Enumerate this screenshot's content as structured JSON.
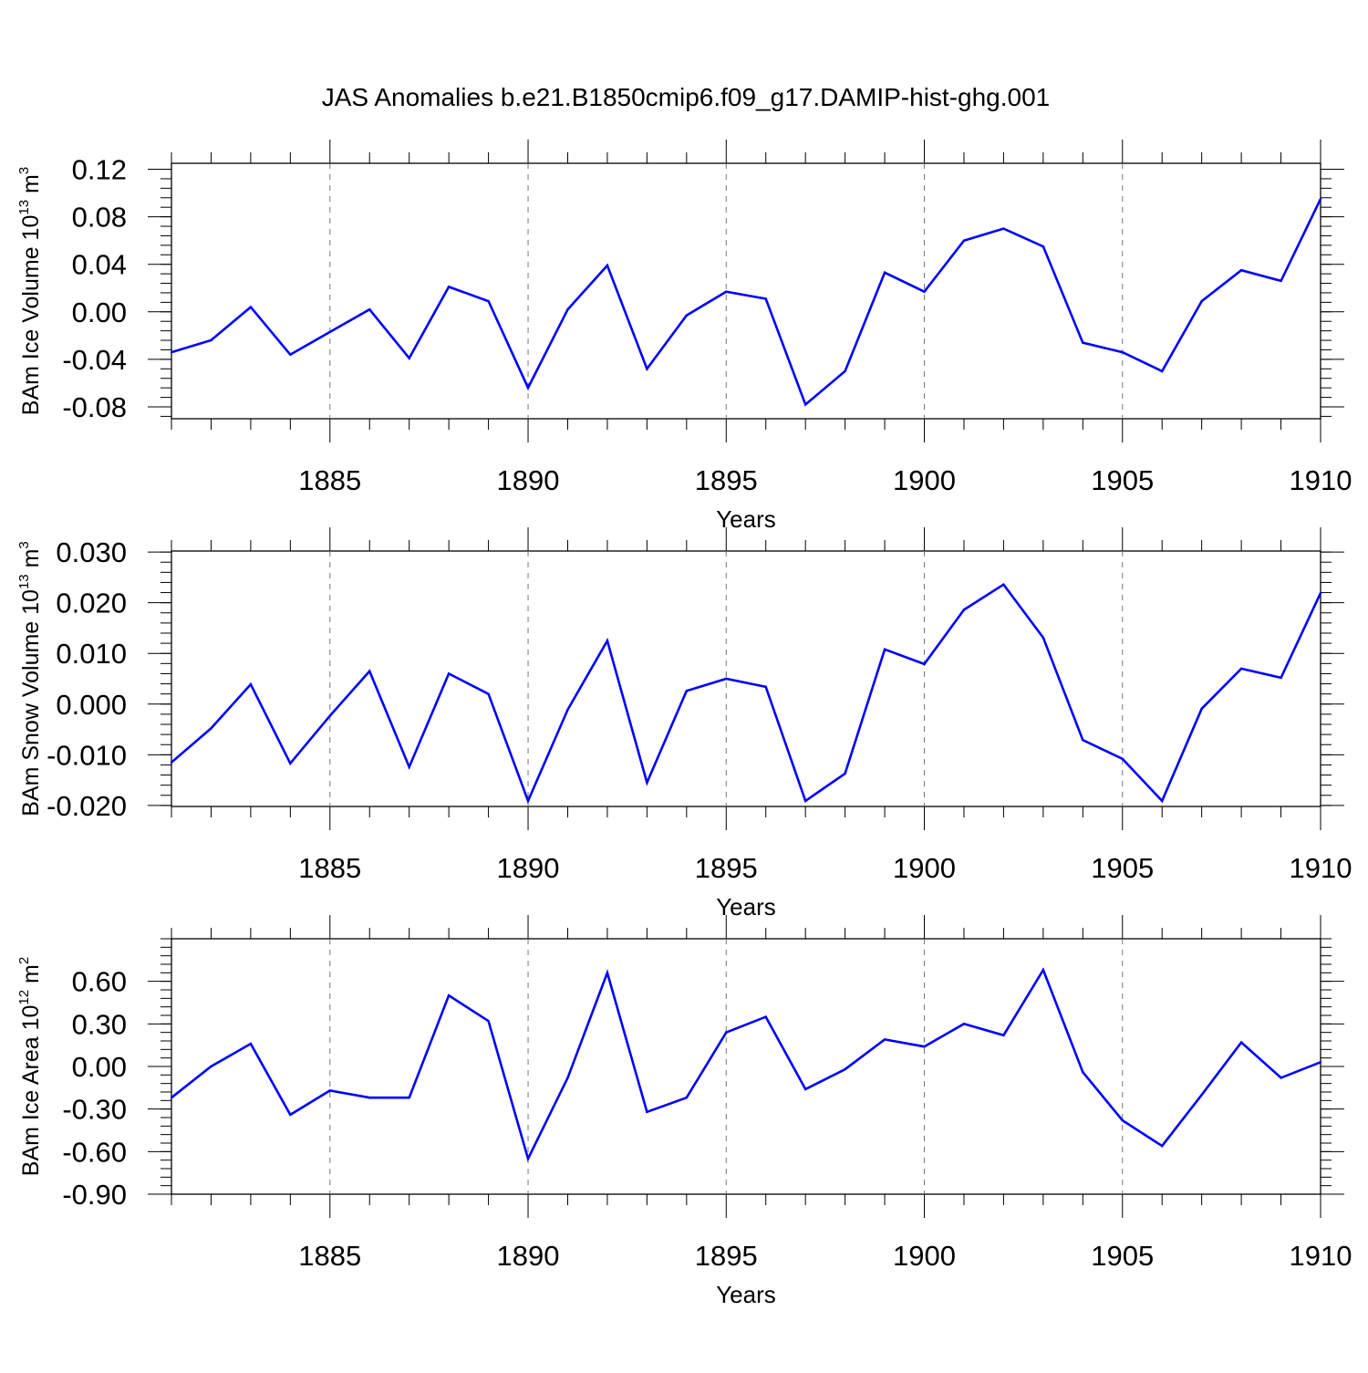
{
  "title": "JAS Anomalies b.e21.B1850cmip6.f09_g17.DAMIP-hist-ghg.001",
  "colors": {
    "line": "#0000ff",
    "axis": "#000000",
    "grid": "#777777"
  },
  "chart_data": [
    {
      "type": "line",
      "ylabel": "BAm Ice Volume",
      "ylabel_scale_base": "10",
      "ylabel_exponent": "13",
      "ylabel_unit": "m",
      "ylabel_unit_power": "3",
      "xlabel": "Years",
      "xlim": [
        1881,
        1910
      ],
      "ylim": [
        -0.09,
        0.125
      ],
      "yticks": [
        0.12,
        0.08,
        0.04,
        0.0,
        -0.04,
        -0.08
      ],
      "ytick_labels": [
        "0.12",
        "0.08",
        "0.04",
        "0.00",
        "-0.04",
        "-0.08"
      ],
      "xticks": [
        1885,
        1890,
        1895,
        1900,
        1905,
        1910
      ],
      "xtick_labels": [
        "1885",
        "1890",
        "1895",
        "1900",
        "1905",
        "1910"
      ],
      "x": [
        1881,
        1882,
        1883,
        1884,
        1885,
        1886,
        1887,
        1888,
        1889,
        1890,
        1891,
        1892,
        1893,
        1894,
        1895,
        1896,
        1897,
        1898,
        1899,
        1900,
        1901,
        1902,
        1903,
        1904,
        1905,
        1906,
        1907,
        1908,
        1909,
        1910
      ],
      "values": [
        -0.034,
        -0.024,
        0.004,
        -0.036,
        -0.017,
        0.002,
        -0.039,
        0.021,
        0.009,
        -0.064,
        0.002,
        0.039,
        -0.048,
        -0.003,
        0.017,
        0.011,
        -0.078,
        -0.05,
        0.033,
        0.017,
        0.06,
        0.07,
        0.055,
        -0.026,
        -0.034,
        -0.05,
        0.009,
        0.035,
        0.026,
        0.095
      ]
    },
    {
      "type": "line",
      "ylabel": "BAm Snow Volume",
      "ylabel_scale_base": "10",
      "ylabel_exponent": "13",
      "ylabel_unit": "m",
      "ylabel_unit_power": "3",
      "xlabel": "Years",
      "xlim": [
        1881,
        1910
      ],
      "ylim": [
        -0.0202,
        0.0302
      ],
      "yticks": [
        0.03,
        0.02,
        0.01,
        0.0,
        -0.01,
        -0.02
      ],
      "ytick_labels": [
        "0.030",
        "0.020",
        "0.010",
        "0.000",
        "-0.010",
        "-0.020"
      ],
      "xticks": [
        1885,
        1890,
        1895,
        1900,
        1905,
        1910
      ],
      "xtick_labels": [
        "1885",
        "1890",
        "1895",
        "1900",
        "1905",
        "1910"
      ],
      "x": [
        1881,
        1882,
        1883,
        1884,
        1885,
        1886,
        1887,
        1888,
        1889,
        1890,
        1891,
        1892,
        1893,
        1894,
        1895,
        1896,
        1897,
        1898,
        1899,
        1900,
        1901,
        1902,
        1903,
        1904,
        1905,
        1906,
        1907,
        1908,
        1909,
        1910
      ],
      "values": [
        -0.0115,
        -0.0048,
        0.0039,
        -0.0117,
        -0.0023,
        0.0065,
        -0.0124,
        0.006,
        0.002,
        -0.0191,
        -0.0011,
        0.0125,
        -0.0155,
        0.0026,
        0.005,
        0.0034,
        -0.0191,
        -0.0137,
        0.0108,
        0.0079,
        0.0186,
        0.0236,
        0.0131,
        -0.0071,
        -0.0108,
        -0.0191,
        -0.0009,
        0.007,
        0.0052,
        0.0219
      ]
    },
    {
      "type": "line",
      "ylabel": "BAm Ice Area",
      "ylabel_scale_base": "10",
      "ylabel_exponent": "12",
      "ylabel_unit": "m",
      "ylabel_unit_power": "2",
      "xlabel": "Years",
      "xlim": [
        1881,
        1910
      ],
      "ylim": [
        -0.9,
        0.9
      ],
      "yticks": [
        0.6,
        0.3,
        0.0,
        -0.3,
        -0.6,
        -0.9
      ],
      "ytick_labels": [
        "0.60",
        "0.30",
        "0.00",
        "-0.30",
        "-0.60",
        "-0.90"
      ],
      "xticks": [
        1885,
        1890,
        1895,
        1900,
        1905,
        1910
      ],
      "xtick_labels": [
        "1885",
        "1890",
        "1895",
        "1900",
        "1905",
        "1910"
      ],
      "x": [
        1881,
        1882,
        1883,
        1884,
        1885,
        1886,
        1887,
        1888,
        1889,
        1890,
        1891,
        1892,
        1893,
        1894,
        1895,
        1896,
        1897,
        1898,
        1899,
        1900,
        1901,
        1902,
        1903,
        1904,
        1905,
        1906,
        1907,
        1908,
        1909,
        1910
      ],
      "values": [
        -0.22,
        0.0,
        0.16,
        -0.34,
        -0.17,
        -0.22,
        -0.22,
        0.5,
        0.32,
        -0.65,
        -0.08,
        0.66,
        -0.32,
        -0.22,
        0.24,
        0.35,
        -0.16,
        -0.02,
        0.19,
        0.14,
        0.3,
        0.22,
        0.68,
        -0.04,
        -0.38,
        -0.56,
        -0.2,
        0.17,
        -0.08,
        0.03
      ]
    }
  ]
}
